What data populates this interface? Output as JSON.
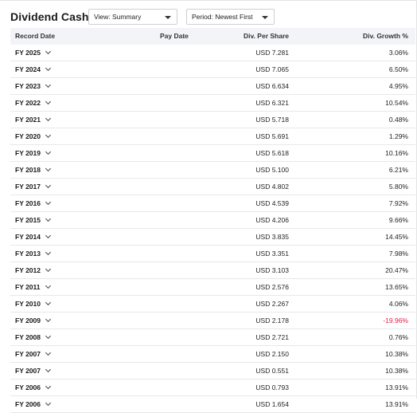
{
  "title": "Dividend Cash Flow",
  "controls": {
    "view_label": "View: Summary",
    "period_label": "Period: Newest First"
  },
  "table": {
    "headers": {
      "record_date": "Record Date",
      "pay_date": "Pay Date",
      "div_per_share": "Div. Per Share",
      "div_growth": "Div. Growth %"
    },
    "rows": [
      {
        "record": "FY 2025",
        "pay": "",
        "div": "USD 7.281",
        "growth": "3.06%"
      },
      {
        "record": "FY 2024",
        "pay": "",
        "div": "USD 7.065",
        "growth": "6.50%"
      },
      {
        "record": "FY 2023",
        "pay": "",
        "div": "USD 6.634",
        "growth": "4.95%"
      },
      {
        "record": "FY 2022",
        "pay": "",
        "div": "USD 6.321",
        "growth": "10.54%"
      },
      {
        "record": "FY 2021",
        "pay": "",
        "div": "USD 5.718",
        "growth": "0.48%"
      },
      {
        "record": "FY 2020",
        "pay": "",
        "div": "USD 5.691",
        "growth": "1.29%"
      },
      {
        "record": "FY 2019",
        "pay": "",
        "div": "USD 5.618",
        "growth": "10.16%"
      },
      {
        "record": "FY 2018",
        "pay": "",
        "div": "USD 5.100",
        "growth": "6.21%"
      },
      {
        "record": "FY 2017",
        "pay": "",
        "div": "USD 4.802",
        "growth": "5.80%"
      },
      {
        "record": "FY 2016",
        "pay": "",
        "div": "USD 4.539",
        "growth": "7.92%"
      },
      {
        "record": "FY 2015",
        "pay": "",
        "div": "USD 4.206",
        "growth": "9.66%"
      },
      {
        "record": "FY 2014",
        "pay": "",
        "div": "USD 3.835",
        "growth": "14.45%"
      },
      {
        "record": "FY 2013",
        "pay": "",
        "div": "USD 3.351",
        "growth": "7.98%"
      },
      {
        "record": "FY 2012",
        "pay": "",
        "div": "USD 3.103",
        "growth": "20.47%"
      },
      {
        "record": "FY 2011",
        "pay": "",
        "div": "USD 2.576",
        "growth": "13.65%"
      },
      {
        "record": "FY 2010",
        "pay": "",
        "div": "USD 2.267",
        "growth": "4.06%"
      },
      {
        "record": "FY 2009",
        "pay": "",
        "div": "USD 2.178",
        "growth": "-19.96%",
        "negative": true
      },
      {
        "record": "FY 2008",
        "pay": "",
        "div": "USD 2.721",
        "growth": "0.76%"
      },
      {
        "record": "FY 2007",
        "pay": "",
        "div": "USD 2.150",
        "growth": "10.38%"
      },
      {
        "record": "FY 2007",
        "pay": "",
        "div": "USD 0.551",
        "growth": "10.38%"
      },
      {
        "record": "FY 2006",
        "pay": "",
        "div": "USD 0.793",
        "growth": "13.91%"
      },
      {
        "record": "FY 2006",
        "pay": "",
        "div": "USD 1.654",
        "growth": "13.91%"
      }
    ]
  },
  "colors": {
    "header_bg": "#f2f4f7",
    "negative": "#e0204a",
    "row_divider": "#e6e8eb"
  },
  "icons": {
    "row_expand": "chevron-down-icon",
    "dropdown": "caret-down-icon"
  }
}
